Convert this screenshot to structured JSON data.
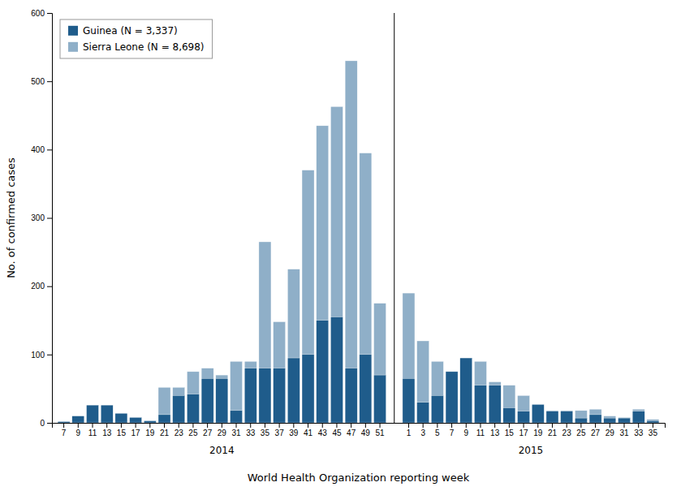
{
  "chart_data": {
    "type": "bar",
    "xlabel": "World Health Organization reporting week",
    "ylabel": "No. of confirmed cases",
    "categories": [
      "7",
      "9",
      "11",
      "13",
      "15",
      "17",
      "19",
      "21",
      "23",
      "25",
      "27",
      "29",
      "31",
      "33",
      "35",
      "37",
      "39",
      "41",
      "43",
      "45",
      "47",
      "49",
      "51",
      "1",
      "3",
      "5",
      "7",
      "9",
      "11",
      "13",
      "15",
      "17",
      "19",
      "21",
      "23",
      "25",
      "27",
      "29",
      "31",
      "33",
      "35"
    ],
    "category_groups": [
      "2014",
      "2014",
      "2014",
      "2014",
      "2014",
      "2014",
      "2014",
      "2014",
      "2014",
      "2014",
      "2014",
      "2014",
      "2014",
      "2014",
      "2014",
      "2014",
      "2014",
      "2014",
      "2014",
      "2014",
      "2014",
      "2014",
      "2014",
      "2015",
      "2015",
      "2015",
      "2015",
      "2015",
      "2015",
      "2015",
      "2015",
      "2015",
      "2015",
      "2015",
      "2015",
      "2015",
      "2015",
      "2015",
      "2015",
      "2015",
      "2015"
    ],
    "series": [
      {
        "name": "Guinea (N = 3,337)",
        "color": "#1f5c8b",
        "values": [
          2,
          10,
          26,
          26,
          14,
          8,
          3,
          12,
          40,
          42,
          65,
          65,
          18,
          80,
          80,
          80,
          95,
          100,
          150,
          155,
          80,
          100,
          70,
          65,
          30,
          40,
          75,
          95,
          55,
          55,
          22,
          17,
          27,
          17,
          17,
          7,
          12,
          7,
          7,
          17,
          3
        ]
      },
      {
        "name": "Sierra Leone (N = 8,698)",
        "color": "#8fafc8",
        "values": [
          0,
          0,
          3,
          6,
          0,
          0,
          0,
          52,
          52,
          75,
          80,
          70,
          90,
          90,
          265,
          148,
          225,
          370,
          435,
          463,
          530,
          395,
          175,
          190,
          120,
          90,
          75,
          35,
          90,
          60,
          55,
          40,
          25,
          18,
          18,
          18,
          20,
          10,
          8,
          20,
          5
        ]
      }
    ],
    "ylim": [
      0,
      600
    ],
    "yticks": [
      0,
      100,
      200,
      300,
      400,
      500,
      600
    ],
    "stacked": false,
    "grid": false,
    "legend": "upper left"
  }
}
